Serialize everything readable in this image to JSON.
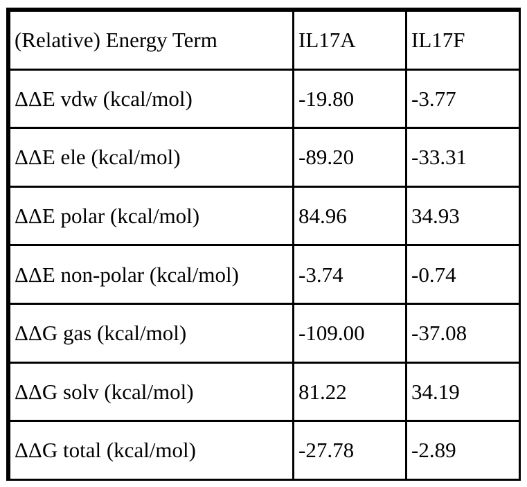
{
  "table": {
    "headers": [
      "(Relative) Energy Term",
      "IL17A",
      "IL17F"
    ],
    "rows": [
      [
        "ΔΔE vdw (kcal/mol)",
        "-19.80",
        "-3.77"
      ],
      [
        "ΔΔE ele (kcal/mol)",
        "-89.20",
        "-33.31"
      ],
      [
        "ΔΔE polar (kcal/mol)",
        "84.96",
        "34.93"
      ],
      [
        "ΔΔE non-polar (kcal/mol)",
        "-3.74",
        "-0.74"
      ],
      [
        "ΔΔG gas (kcal/mol)",
        "-109.00",
        "-37.08"
      ],
      [
        "ΔΔG solv (kcal/mol)",
        "81.22",
        "34.19"
      ],
      [
        "ΔΔG total (kcal/mol)",
        "-27.78",
        "-2.89"
      ]
    ]
  }
}
